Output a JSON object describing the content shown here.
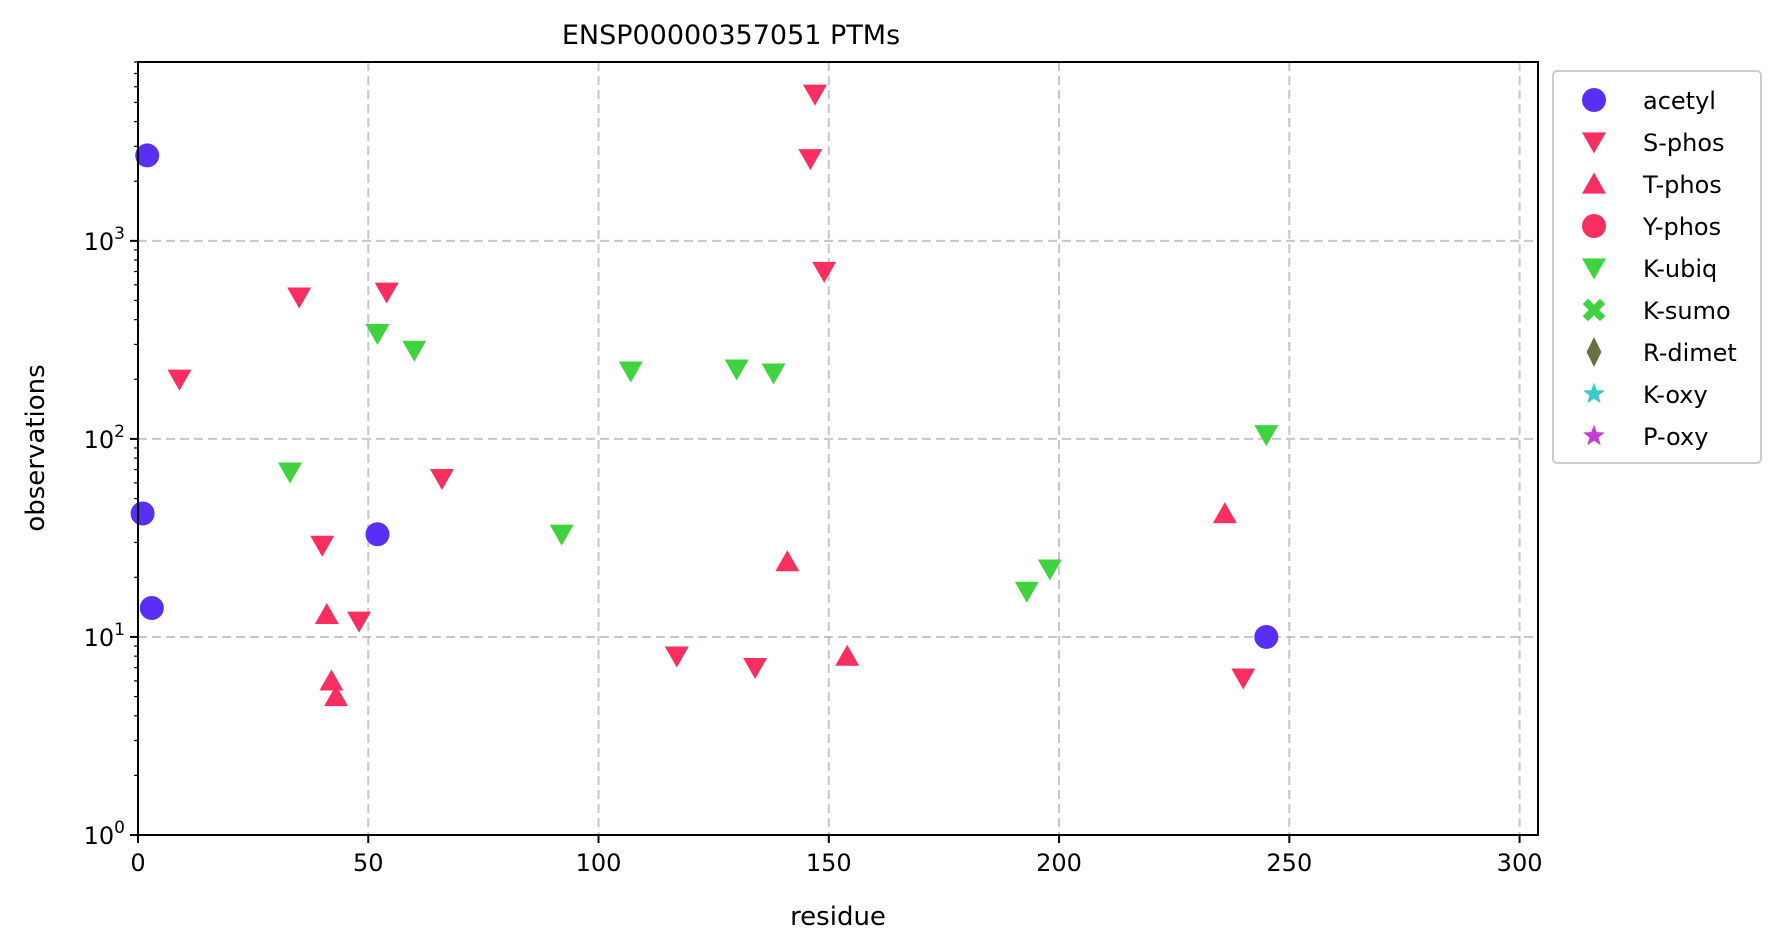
{
  "chart_data": {
    "type": "scatter",
    "title": "ENSP00000357051 PTMs",
    "xlabel": "residue",
    "ylabel": "observations",
    "xlim": [
      0,
      304
    ],
    "ylim": [
      1,
      8000
    ],
    "yscale": "log",
    "grid": true,
    "legend_position": "outside-right",
    "x_ticks": [
      0,
      50,
      100,
      150,
      200,
      250,
      300
    ],
    "y_ticks": [
      {
        "value": 1,
        "base": "10",
        "exp": "0"
      },
      {
        "value": 10,
        "base": "10",
        "exp": "1"
      },
      {
        "value": 100,
        "base": "10",
        "exp": "2"
      },
      {
        "value": 1000,
        "base": "10",
        "exp": "3"
      }
    ],
    "series": [
      {
        "name": "acetyl",
        "marker": "circle",
        "color": "#5a2ff5",
        "points": [
          [
            2,
            2700
          ],
          [
            1,
            42
          ],
          [
            3,
            14
          ],
          [
            52,
            33
          ],
          [
            245,
            10
          ]
        ]
      },
      {
        "name": "S-phos",
        "marker": "triangle-down",
        "color": "#fb2f5f",
        "points": [
          [
            147,
            5500
          ],
          [
            146,
            2600
          ],
          [
            149,
            700
          ],
          [
            35,
            520
          ],
          [
            54,
            550
          ],
          [
            9,
            200
          ],
          [
            66,
            63
          ],
          [
            40,
            29
          ],
          [
            48,
            12
          ],
          [
            117,
            8
          ],
          [
            134,
            7
          ],
          [
            240,
            6.2
          ]
        ]
      },
      {
        "name": "T-phos",
        "marker": "triangle-up",
        "color": "#fb2f5f",
        "points": [
          [
            41,
            13
          ],
          [
            42,
            6
          ],
          [
            43,
            5
          ],
          [
            141,
            24
          ],
          [
            154,
            8
          ],
          [
            236,
            42
          ]
        ]
      },
      {
        "name": "Y-phos",
        "marker": "circle",
        "color": "#fb2f5f",
        "points": []
      },
      {
        "name": "K-ubiq",
        "marker": "triangle-down",
        "color": "#3fd33f",
        "points": [
          [
            52,
            340
          ],
          [
            60,
            280
          ],
          [
            33,
            68
          ],
          [
            92,
            33
          ],
          [
            107,
            220
          ],
          [
            130,
            225
          ],
          [
            138,
            215
          ],
          [
            193,
            17
          ],
          [
            198,
            22
          ],
          [
            245,
            105
          ]
        ]
      },
      {
        "name": "K-sumo",
        "marker": "x",
        "color": "#3fd33f",
        "points": []
      },
      {
        "name": "R-dimet",
        "marker": "diamond",
        "color": "#6b7040",
        "points": []
      },
      {
        "name": "K-oxy",
        "marker": "star",
        "color": "#3ec9c9",
        "points": []
      },
      {
        "name": "P-oxy",
        "marker": "star",
        "color": "#c23fd3",
        "points": []
      }
    ]
  }
}
